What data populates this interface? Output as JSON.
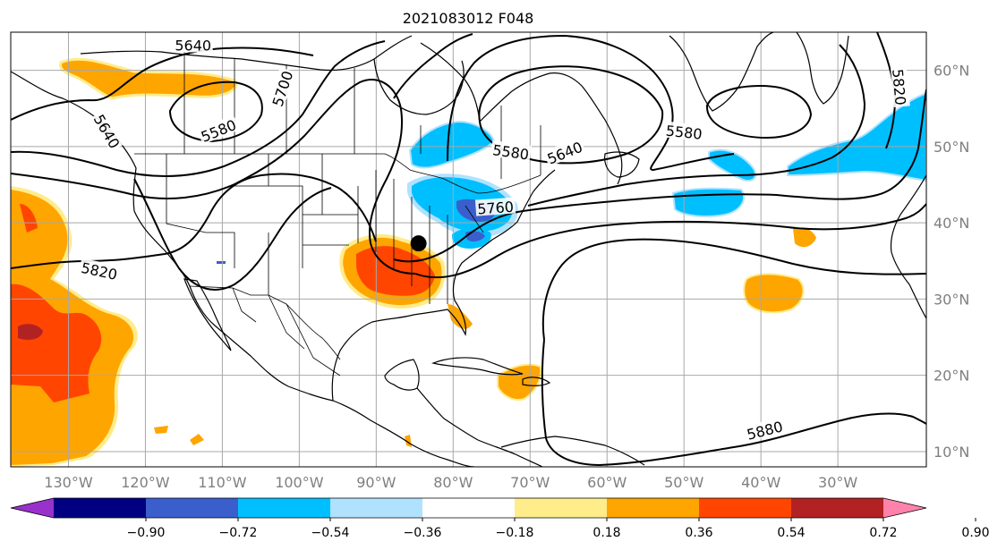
{
  "title": "2021083012 F048",
  "map": {
    "lon_range": [
      -137.5,
      -18.5
    ],
    "lat_range": [
      8,
      65
    ],
    "lon_ticks": [
      {
        "value": -130,
        "label": "130°W"
      },
      {
        "value": -120,
        "label": "120°W"
      },
      {
        "value": -110,
        "label": "110°W"
      },
      {
        "value": -100,
        "label": "100°W"
      },
      {
        "value": -90,
        "label": "90°W"
      },
      {
        "value": -80,
        "label": "80°W"
      },
      {
        "value": -70,
        "label": "70°W"
      },
      {
        "value": -60,
        "label": "60°W"
      },
      {
        "value": -50,
        "label": "50°W"
      },
      {
        "value": -40,
        "label": "40°W"
      },
      {
        "value": -30,
        "label": "30°W"
      }
    ],
    "lat_ticks": [
      {
        "value": 60,
        "label": "60°N"
      },
      {
        "value": 50,
        "label": "50°N"
      },
      {
        "value": 40,
        "label": "40°N"
      },
      {
        "value": 30,
        "label": "30°N"
      },
      {
        "value": 20,
        "label": "20°N"
      },
      {
        "value": 10,
        "label": "10°N"
      }
    ],
    "marker": {
      "lon": -84.5,
      "lat": 37.3,
      "color": "#000000"
    },
    "contour_labels": [
      {
        "text": "5640",
        "lon": -113.8,
        "lat": 63.3,
        "rotate": 0
      },
      {
        "text": "5700",
        "lon": -102.2,
        "lat": 57.6,
        "rotate": -72
      },
      {
        "text": "5580",
        "lon": -110.5,
        "lat": 52.1,
        "rotate": -22
      },
      {
        "text": "5640",
        "lon": -125.0,
        "lat": 52.0,
        "rotate": 60
      },
      {
        "text": "5820",
        "lon": -126.0,
        "lat": 33.7,
        "rotate": 12
      },
      {
        "text": "5580",
        "lon": -72.5,
        "lat": 49.3,
        "rotate": 8
      },
      {
        "text": "5760",
        "lon": -74.5,
        "lat": 42.0,
        "rotate": -4
      },
      {
        "text": "5640",
        "lon": -65.5,
        "lat": 49.2,
        "rotate": -22
      },
      {
        "text": "5580",
        "lon": -50.0,
        "lat": 51.9,
        "rotate": 6
      },
      {
        "text": "5820",
        "lon": -22.0,
        "lat": 57.8,
        "rotate": 85
      },
      {
        "text": "5880",
        "lon": -39.5,
        "lat": 12.8,
        "rotate": -14
      }
    ]
  },
  "colorbar": {
    "colors": [
      "#9932cc",
      "#000080",
      "#3a5fcd",
      "#00bfff",
      "#b0e2ff",
      "#ffffff",
      "#ffec8b",
      "#ffa500",
      "#ff4500",
      "#b22222",
      "#ff82ab"
    ],
    "ticks": [
      "−0.90",
      "−0.72",
      "−0.54",
      "−0.36",
      "−0.18",
      "0.18",
      "0.36",
      "0.54",
      "0.72",
      "0.90"
    ],
    "extend": "both"
  }
}
